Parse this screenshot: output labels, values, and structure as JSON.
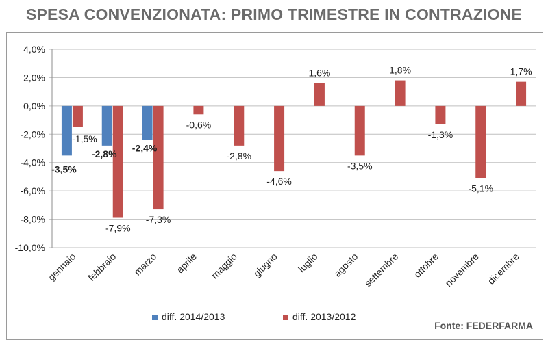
{
  "header": {
    "title": "SPESA CONVENZIONATA: PRIMO TRIMESTRE IN CONTRAZIONE",
    "source": "Fonte: FEDERFARMA"
  },
  "colors": {
    "series_2014": "#4f81bd",
    "series_2013": "#c0504d",
    "grid": "#bfbfbf",
    "title": "#6b6b6b"
  },
  "chart_data": {
    "type": "bar",
    "title": "SPESA CONVENZIONATA: PRIMO TRIMESTRE IN CONTRAZIONE",
    "xlabel": "",
    "ylabel": "",
    "ylim": [
      -10,
      4
    ],
    "yticks": [
      4,
      2,
      0,
      -2,
      -4,
      -6,
      -8,
      -10
    ],
    "ytick_labels": [
      "4,0%",
      "2,0%",
      "0,0%",
      "-2,0%",
      "-4,0%",
      "-6,0%",
      "-8,0%",
      "-10,0%"
    ],
    "grid": true,
    "legend": "bottom",
    "categories": [
      "gennaio",
      "febbraio",
      "marzo",
      "aprile",
      "maggio",
      "giugno",
      "luglio",
      "agosto",
      "settembre",
      "ottobre",
      "novembre",
      "dicembre"
    ],
    "series": [
      {
        "name": "diff. 2014/2013",
        "values": [
          -3.5,
          -2.8,
          -2.4,
          null,
          null,
          null,
          null,
          null,
          null,
          null,
          null,
          null
        ],
        "labels": [
          "-3,5%",
          "-2,8%",
          "-2,4%",
          null,
          null,
          null,
          null,
          null,
          null,
          null,
          null,
          null
        ]
      },
      {
        "name": "diff. 2013/2012",
        "values": [
          -1.5,
          -7.9,
          -7.3,
          -0.6,
          -2.8,
          -4.6,
          1.6,
          -3.5,
          1.8,
          -1.3,
          -5.1,
          1.7
        ],
        "labels": [
          "-1,5%",
          "-7,9%",
          "-7,3%",
          "-0,6%",
          "-2,8%",
          "-4,6%",
          "1,6%",
          "-3,5%",
          "1,8%",
          "-1,3%",
          "-5,1%",
          "1,7%"
        ]
      }
    ]
  }
}
